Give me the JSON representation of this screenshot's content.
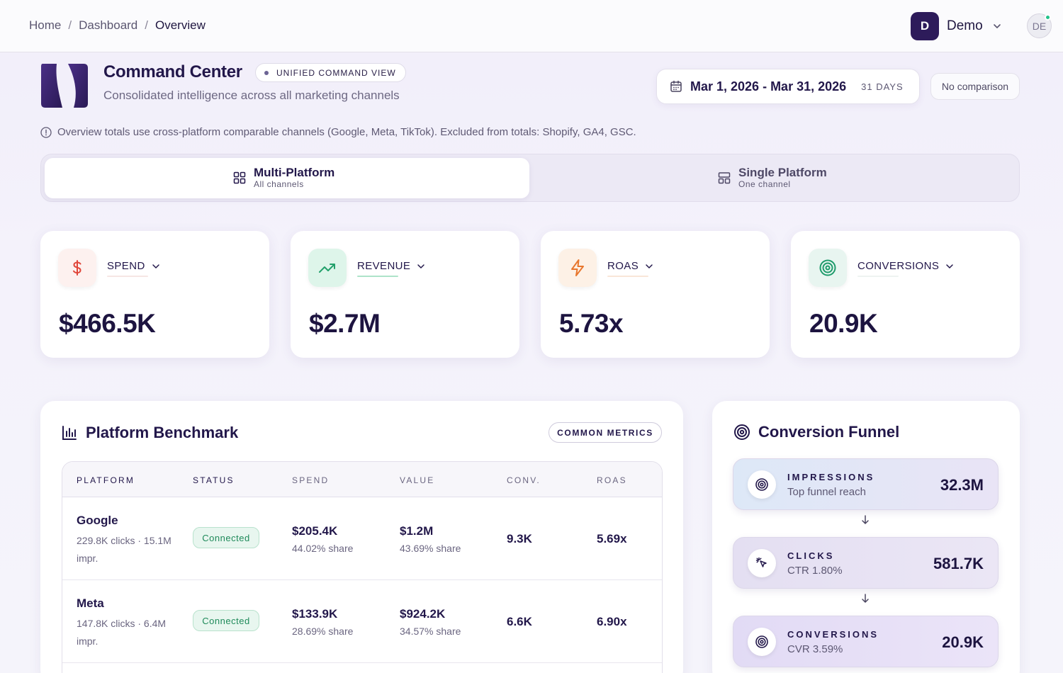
{
  "breadcrumb": {
    "items": [
      "Home",
      "Dashboard",
      "Overview"
    ],
    "sep": "/"
  },
  "account": {
    "initial": "D",
    "name": "Demo",
    "avatar": "DE"
  },
  "header": {
    "title": "Command Center",
    "badge": "UNIFIED COMMAND VIEW",
    "subtitle": "Consolidated intelligence across all marketing channels",
    "date_range": "Mar 1, 2026 - Mar 31, 2026",
    "days": "31 DAYS",
    "comparison": "No comparison",
    "info": "Overview totals use cross-platform comparable channels (Google, Meta, TikTok). Excluded from totals: Shopify, GA4, GSC."
  },
  "view_toggle": {
    "multi": {
      "title": "Multi-Platform",
      "sub": "All channels"
    },
    "single": {
      "title": "Single Platform",
      "sub": "One channel"
    }
  },
  "kpis": [
    {
      "label": "SPEND",
      "value": "$466.5K",
      "icon": "dollar-icon",
      "color": "#e0463a"
    },
    {
      "label": "REVENUE",
      "value": "$2.7M",
      "icon": "trending-up-icon",
      "color": "#22a06b"
    },
    {
      "label": "ROAS",
      "value": "5.73x",
      "icon": "lightning-icon",
      "color": "#e8772e"
    },
    {
      "label": "CONVERSIONS",
      "value": "20.9K",
      "icon": "target-icon",
      "color": "#1e9b6b"
    }
  ],
  "benchmark": {
    "title": "Platform Benchmark",
    "badge": "COMMON METRICS",
    "columns": [
      "PLATFORM",
      "STATUS",
      "SPEND",
      "VALUE",
      "CONV.",
      "ROAS"
    ],
    "rows": [
      {
        "name": "Google",
        "meta": "229.8K clicks · 15.1M impr.",
        "status": "Connected",
        "spend": "$205.4K",
        "spend_share": "44.02% share",
        "value": "$1.2M",
        "value_share": "43.69% share",
        "conv": "9.3K",
        "roas": "5.69x"
      },
      {
        "name": "Meta",
        "meta": "147.8K clicks · 6.4M impr.",
        "status": "Connected",
        "spend": "$133.9K",
        "spend_share": "28.69% share",
        "value": "$924.2K",
        "value_share": "34.57% share",
        "conv": "6.6K",
        "roas": "6.90x"
      }
    ]
  },
  "funnel": {
    "title": "Conversion Funnel",
    "steps": [
      {
        "label": "IMPRESSIONS",
        "sub": "Top funnel reach",
        "value": "32.3M"
      },
      {
        "label": "CLICKS",
        "sub": "CTR 1.80%",
        "value": "581.7K"
      },
      {
        "label": "CONVERSIONS",
        "sub": "CVR 3.59%",
        "value": "20.9K"
      }
    ]
  }
}
